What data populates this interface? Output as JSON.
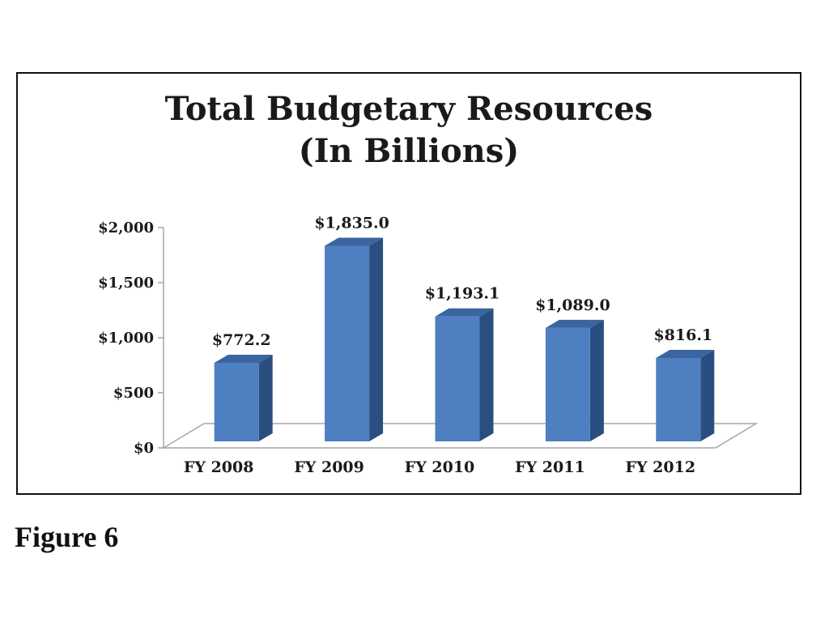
{
  "chart_data": {
    "type": "bar",
    "title_lines": [
      "Total Budgetary Resources",
      "(In Billions)"
    ],
    "categories": [
      "FY 2008",
      "FY 2009",
      "FY 2010",
      "FY 2011",
      "FY 2012"
    ],
    "values": [
      772.2,
      1835.0,
      1193.1,
      1089.0,
      816.1
    ],
    "data_labels": [
      "$772.2",
      "$1,835.0",
      "$1,193.1",
      "$1,089.0",
      "$816.1"
    ],
    "ylim": [
      0,
      2000
    ],
    "yticks": [
      0,
      500,
      1000,
      1500,
      2000
    ],
    "ytick_labels": [
      "$0",
      "$500",
      "$1,000",
      "$1,500",
      "$2,000"
    ],
    "style": "3d-column",
    "grid": false,
    "legend": "none",
    "colors": {
      "bar_front": "#4e7fc0",
      "bar_side": "#2b4e80",
      "bar_top": "#3a65a0",
      "axis": "#a6a6a6"
    }
  },
  "caption": "Figure 6"
}
